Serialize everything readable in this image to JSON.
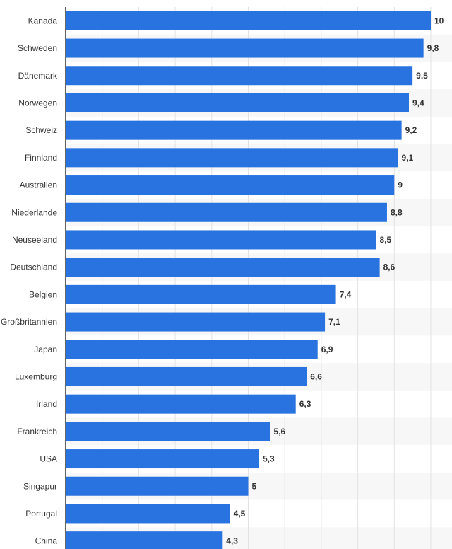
{
  "chart_data": {
    "type": "bar",
    "orientation": "horizontal",
    "title": "",
    "xlabel": "",
    "ylabel": "",
    "xlim": [
      0,
      10
    ],
    "grid": true,
    "legend": "none",
    "bar_color": "#2873e0",
    "categories": [
      "Kanada",
      "Schweden",
      "Dänemark",
      "Norwegen",
      "Schweiz",
      "Finnland",
      "Australien",
      "Niederlande",
      "Neuseeland",
      "Deutschland",
      "Belgien",
      "Großbritannien",
      "Japan",
      "Luxemburg",
      "Irland",
      "Frankreich",
      "USA",
      "Singapur",
      "Portugal",
      "China"
    ],
    "values": [
      10,
      9.8,
      9.5,
      9.4,
      9.2,
      9.1,
      9,
      8.8,
      8.5,
      8.6,
      7.4,
      7.1,
      6.9,
      6.6,
      6.3,
      5.6,
      5.3,
      5,
      4.5,
      4.3
    ],
    "value_labels": [
      "10",
      "9,8",
      "9,5",
      "9,4",
      "9,2",
      "9,1",
      "9",
      "8,8",
      "8,5",
      "8,6",
      "7,4",
      "7,1",
      "6,9",
      "6,6",
      "6,3",
      "5,6",
      "5,3",
      "5",
      "4,5",
      "4,3"
    ]
  }
}
